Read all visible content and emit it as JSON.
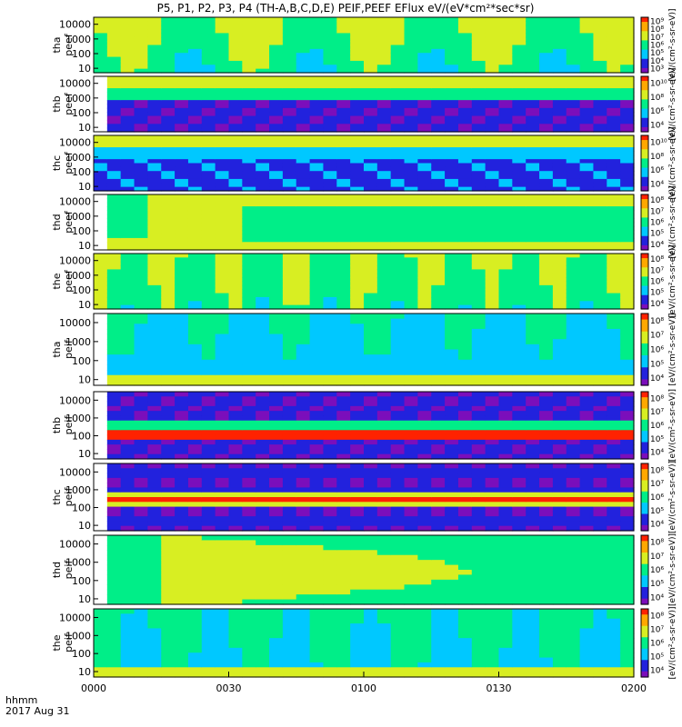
{
  "chart_data": {
    "type": "heatmap",
    "title": "P5, P1, P2, P3, P4 (TH-A,B,C,D,E) PEIF,PEEF EFlux eV/(eV*cm²*sec*sr)",
    "x_label_row1": "hhmm",
    "x_label_row2": "2017 Aug 31",
    "x_ticks": [
      "0000",
      "0030",
      "0100",
      "0130",
      "0200"
    ],
    "y_ticks": [
      "10",
      "100",
      "1000",
      "10000"
    ],
    "y_scale": "log",
    "y_range_eV": [
      5,
      30000
    ],
    "x_range_hhmm": [
      "0000",
      "0200"
    ],
    "colorbar_label": "[eV/(cm²-s-sr-eV)]",
    "colormap": [
      "#7b0ebb",
      "#2222dd",
      "#00c8ff",
      "#00ee88",
      "#d8ee22",
      "#ffa800",
      "#ff2200"
    ],
    "panels": [
      {
        "label": [
          "tha",
          "peef"
        ],
        "cbar_ticks": [
          "10³",
          "10⁴",
          "10⁵",
          "10⁶",
          "10⁷",
          "10⁸",
          "10⁹"
        ]
      },
      {
        "label": [
          "thb",
          "peef"
        ],
        "cbar_ticks": [
          "10⁴",
          "10⁶",
          "10⁸",
          "10¹⁰"
        ]
      },
      {
        "label": [
          "thc",
          "peef"
        ],
        "cbar_ticks": [
          "10⁴",
          "10⁶",
          "10⁸",
          "10¹⁰"
        ]
      },
      {
        "label": [
          "thd",
          "peef"
        ],
        "cbar_ticks": [
          "10⁴",
          "10⁵",
          "10⁶",
          "10⁷",
          "10⁸"
        ]
      },
      {
        "label": [
          "the",
          "peef"
        ],
        "cbar_ticks": [
          "10⁴",
          "10⁵",
          "10⁶",
          "10⁷",
          "10⁸"
        ]
      },
      {
        "label": [
          "tha",
          "peif"
        ],
        "cbar_ticks": [
          "10⁴",
          "10⁵",
          "10⁶",
          "10⁷",
          "10⁸"
        ]
      },
      {
        "label": [
          "thb",
          "peif"
        ],
        "cbar_ticks": [
          "10⁴",
          "10⁵",
          "10⁶",
          "10⁷",
          "10⁸"
        ]
      },
      {
        "label": [
          "thc",
          "peif"
        ],
        "cbar_ticks": [
          "10⁴",
          "10⁵",
          "10⁶",
          "10⁷",
          "10⁸"
        ]
      },
      {
        "label": [
          "thd",
          "peif"
        ],
        "cbar_ticks": [
          "10⁴",
          "10⁵",
          "10⁶",
          "10⁷",
          "10⁸"
        ]
      },
      {
        "label": [
          "the",
          "peif"
        ],
        "cbar_ticks": [
          "10⁴",
          "10⁵",
          "10⁶",
          "10⁷",
          "10⁸"
        ]
      }
    ]
  }
}
